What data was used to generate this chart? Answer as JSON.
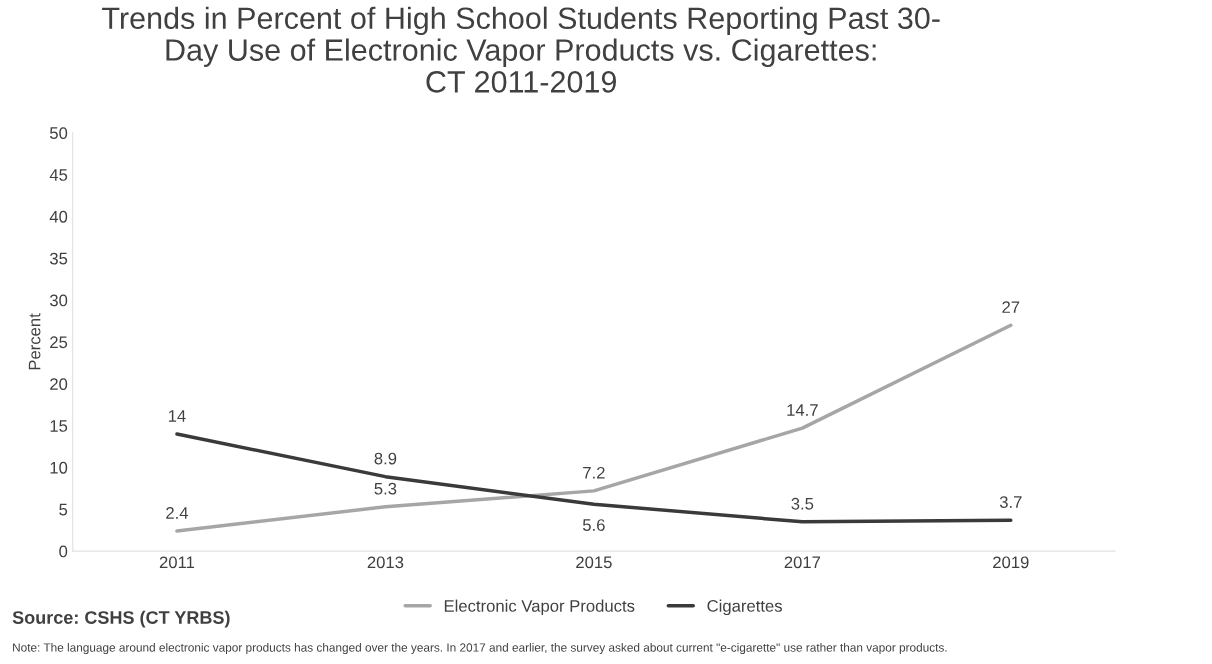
{
  "chart_data": {
    "type": "line",
    "title": "Trends in Percent of High School Students Reporting Past 30-\nDay Use of Electronic Vapor Products vs. Cigarettes:\nCT 2011-2019",
    "ylabel": "Percent",
    "categories": [
      "2011",
      "2013",
      "2015",
      "2017",
      "2019"
    ],
    "series": [
      {
        "name": "Electronic Vapor Products",
        "color": "#a6a6a6",
        "values": [
          2.4,
          5.3,
          7.2,
          14.7,
          27
        ]
      },
      {
        "name": "Cigarettes",
        "color": "#3a3a3a",
        "values": [
          14,
          8.9,
          5.6,
          3.5,
          3.7
        ]
      }
    ],
    "ylim": [
      0,
      50
    ],
    "yticks": [
      0,
      5,
      10,
      15,
      20,
      25,
      30,
      35,
      40,
      45,
      50
    ],
    "grid": false,
    "legend": "bottom",
    "marker": "none",
    "line_style": "solid",
    "data_labels": true,
    "annotations": [
      "Source: CSHS (CT YRBS)",
      "Note: The language around electronic vapor products has changed over the years. In 2017 and earlier, the survey asked about current \"e-cigarette\" use rather than vapor products."
    ]
  }
}
